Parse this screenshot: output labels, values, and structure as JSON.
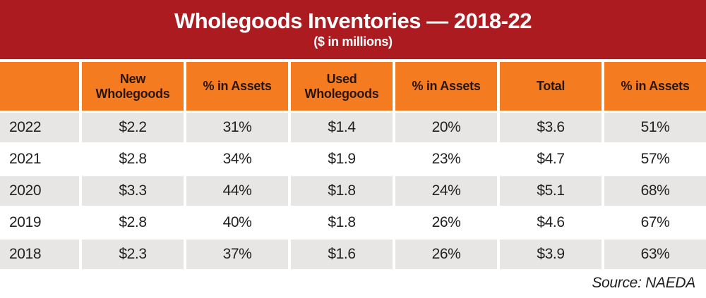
{
  "banner": {
    "title": "Wholegoods Inventories — 2018-22",
    "subtitle": "($ in millions)"
  },
  "table": {
    "columns": [
      "",
      "New\nWholegoods",
      "% in Assets",
      "Used\nWholegoods",
      "% in Assets",
      "Total",
      "% in Assets"
    ],
    "rows": [
      {
        "year": "2022",
        "values": [
          "$2.2",
          "31%",
          "$1.4",
          "20%",
          "$3.6",
          "51%"
        ]
      },
      {
        "year": "2021",
        "values": [
          "$2.8",
          "34%",
          "$1.9",
          "23%",
          "$4.7",
          "57%"
        ]
      },
      {
        "year": "2020",
        "values": [
          "$3.3",
          "44%",
          "$1.8",
          "24%",
          "$5.1",
          "68%"
        ]
      },
      {
        "year": "2019",
        "values": [
          "$2.8",
          "40%",
          "$1.8",
          "26%",
          "$4.6",
          "67%"
        ]
      },
      {
        "year": "2018",
        "values": [
          "$2.3",
          "37%",
          "$1.6",
          "26%",
          "$3.9",
          "63%"
        ]
      }
    ]
  },
  "source": "Source: NAEDA",
  "colors": {
    "banner_red": "#AC1B20",
    "header_orange": "#F47B20",
    "row_gray": "#E7E6E5",
    "header_text": "#2A1509",
    "data_text": "#232021"
  },
  "chart_data": {
    "type": "table",
    "title": "Wholegoods Inventories — 2018-22",
    "subtitle": "($ in millions)",
    "categories": [
      "2022",
      "2021",
      "2020",
      "2019",
      "2018"
    ],
    "series": [
      {
        "name": "New Wholegoods ($M)",
        "values": [
          2.2,
          2.8,
          3.3,
          2.8,
          2.3
        ]
      },
      {
        "name": "New % in Assets",
        "values": [
          31,
          34,
          44,
          40,
          37
        ]
      },
      {
        "name": "Used Wholegoods ($M)",
        "values": [
          1.4,
          1.9,
          1.8,
          1.8,
          1.6
        ]
      },
      {
        "name": "Used % in Assets",
        "values": [
          20,
          23,
          24,
          26,
          26
        ]
      },
      {
        "name": "Total ($M)",
        "values": [
          3.6,
          4.7,
          5.1,
          4.6,
          3.9
        ]
      },
      {
        "name": "Total % in Assets",
        "values": [
          51,
          57,
          68,
          67,
          63
        ]
      }
    ],
    "source": "Source: NAEDA"
  }
}
